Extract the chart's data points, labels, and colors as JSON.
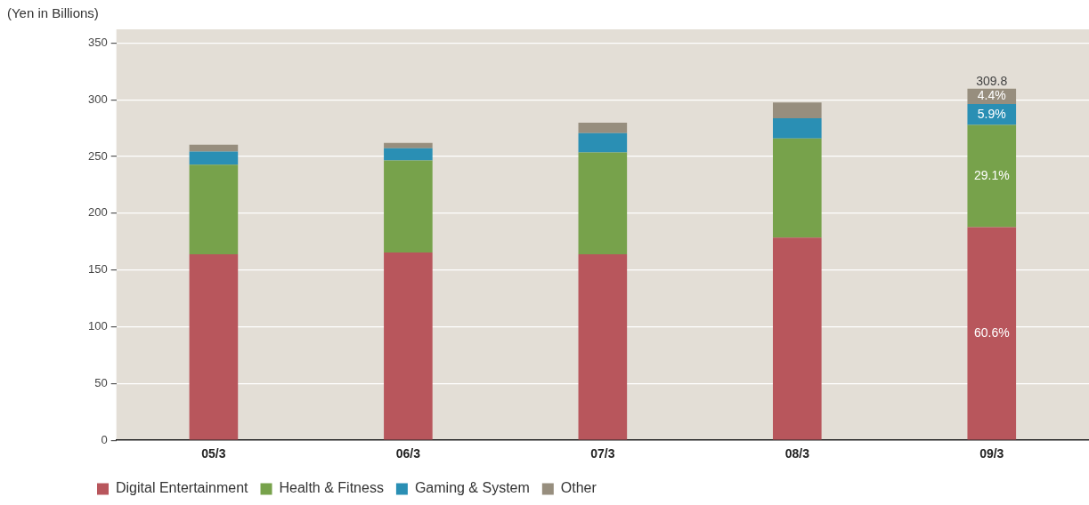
{
  "chart_data": {
    "type": "bar",
    "stacked": true,
    "ylabel": "(Yen in Billions)",
    "categories": [
      "05/3",
      "06/3",
      "07/3",
      "08/3",
      "09/3"
    ],
    "series": [
      {
        "name": "Digital Entertainment",
        "color": "#b8565c",
        "values": [
          163.8,
          165.4,
          163.8,
          178.5,
          187.7
        ]
      },
      {
        "name": "Health & Fitness",
        "color": "#77a24b",
        "values": [
          78.9,
          81.1,
          89.7,
          87.3,
          90.2
        ]
      },
      {
        "name": "Gaming & System",
        "color": "#2a8fb4",
        "values": [
          11.6,
          10.8,
          17.0,
          17.8,
          18.3
        ]
      },
      {
        "name": "Other",
        "color": "#978e7e",
        "values": [
          6.1,
          4.7,
          9.3,
          13.9,
          13.6
        ]
      }
    ],
    "annotations": [
      "60.6%",
      "29.1%",
      "5.9%",
      "4.4%"
    ],
    "totals": [
      null,
      null,
      null,
      null,
      "309.8"
    ],
    "ylim": [
      0,
      362
    ],
    "yticks": [
      0,
      50,
      100,
      150,
      200,
      250,
      300,
      350
    ],
    "grid": "y",
    "legend": "bottom left"
  }
}
